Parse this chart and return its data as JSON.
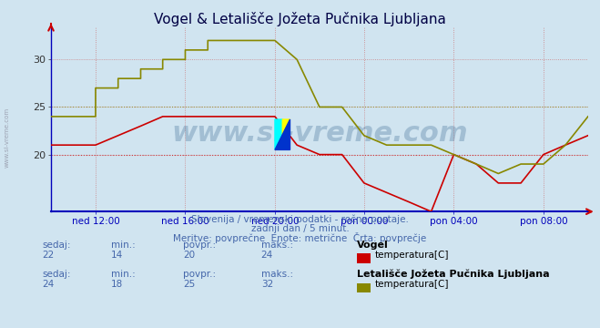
{
  "title": "Vogel & Letališče Jožeta Pučnika Ljubljana",
  "bg_color": "#d0e4f0",
  "plot_bg_color": "#d0e4f0",
  "grid_color": "#cc6666",
  "axis_color": "#0000bb",
  "subtitle1": "Slovenija / vremenski podatki - ročne postaje.",
  "subtitle2": "zadnji dan / 5 minut.",
  "subtitle3": "Meritve: povprečne  Enote: metrične  Črta: povprečje",
  "subtitle_color": "#4466aa",
  "watermark": "www.si-vreme.com",
  "watermark_color": "#1a5080",
  "ylim": [
    14,
    33.5
  ],
  "yticks": [
    20,
    25,
    30
  ],
  "x_labels": [
    "ned 12:00",
    "ned 16:00",
    "ned 20:00",
    "pon 00:00",
    "pon 04:00",
    "pon 08:00"
  ],
  "x_positions": [
    0.083,
    0.25,
    0.417,
    0.583,
    0.75,
    0.917
  ],
  "vogel_color": "#cc0000",
  "ljubljana_color": "#888800",
  "avg_vogel": 20,
  "avg_ljubljana": 25,
  "legend1_station": "Vogel",
  "legend1_label": "temperatura[C]",
  "legend1_color": "#cc0000",
  "legend2_station": "Letališče Jožeta Pučnika Ljubljana",
  "legend2_label": "temperatura[C]",
  "legend2_color": "#888800",
  "stats1_sedaj": 22,
  "stats1_min": 14,
  "stats1_povpr": 20,
  "stats1_maks": 24,
  "stats2_sedaj": 24,
  "stats2_min": 18,
  "stats2_povpr": 25,
  "stats2_maks": 32,
  "vogel_x": [
    0.0,
    0.083,
    0.083,
    0.125,
    0.125,
    0.167,
    0.167,
    0.208,
    0.208,
    0.25,
    0.25,
    0.292,
    0.292,
    0.333,
    0.333,
    0.375,
    0.375,
    0.417,
    0.417,
    0.458,
    0.458,
    0.5,
    0.5,
    0.542,
    0.542,
    0.583,
    0.583,
    0.625,
    0.625,
    0.667,
    0.667,
    0.708,
    0.708,
    0.75,
    0.75,
    0.792,
    0.792,
    0.833,
    0.833,
    0.875,
    0.875,
    0.917,
    0.917,
    0.958,
    0.958,
    1.0
  ],
  "vogel_y": [
    21,
    21,
    21,
    22,
    22,
    23,
    23,
    24,
    24,
    24,
    24,
    24,
    24,
    24,
    24,
    24,
    24,
    24,
    24,
    21,
    21,
    20,
    20,
    20,
    20,
    17,
    17,
    16,
    16,
    15,
    15,
    14,
    14,
    20,
    20,
    19,
    19,
    17,
    17,
    17,
    17,
    20,
    20,
    21,
    21,
    22
  ],
  "ljubl_x": [
    0.0,
    0.083,
    0.083,
    0.125,
    0.125,
    0.167,
    0.167,
    0.208,
    0.208,
    0.25,
    0.25,
    0.292,
    0.292,
    0.333,
    0.333,
    0.375,
    0.375,
    0.417,
    0.417,
    0.458,
    0.458,
    0.5,
    0.5,
    0.542,
    0.542,
    0.583,
    0.583,
    0.625,
    0.625,
    0.667,
    0.667,
    0.708,
    0.708,
    0.75,
    0.75,
    0.792,
    0.792,
    0.833,
    0.833,
    0.875,
    0.875,
    0.917,
    0.917,
    0.958,
    0.958,
    1.0
  ],
  "ljubl_y": [
    24,
    24,
    27,
    27,
    28,
    28,
    29,
    29,
    30,
    30,
    31,
    31,
    32,
    32,
    32,
    32,
    32,
    32,
    32,
    30,
    30,
    25,
    25,
    25,
    25,
    22,
    22,
    21,
    21,
    21,
    21,
    21,
    21,
    20,
    20,
    19,
    19,
    18,
    18,
    19,
    19,
    19,
    19,
    21,
    21,
    24
  ]
}
